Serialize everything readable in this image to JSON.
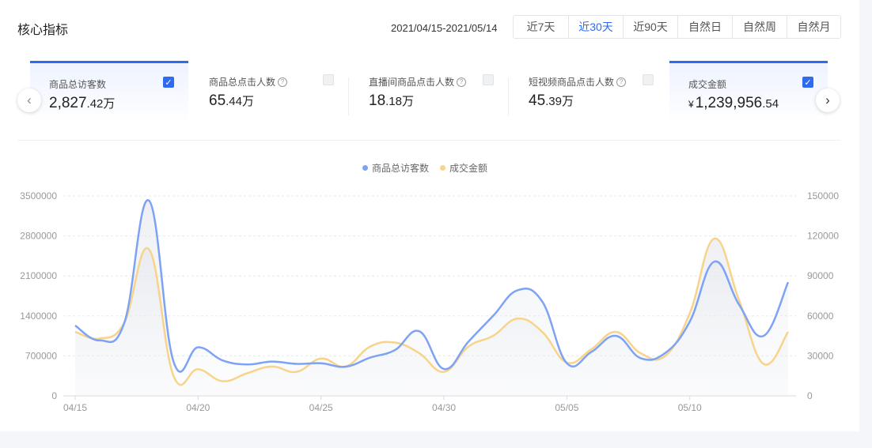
{
  "header": {
    "title": "核心指标",
    "date_range": "2021/04/15-2021/05/14"
  },
  "period_tabs": [
    {
      "label": "近7天",
      "active": false
    },
    {
      "label": "近30天",
      "active": true
    },
    {
      "label": "近90天",
      "active": false
    },
    {
      "label": "自然日",
      "active": false
    },
    {
      "label": "自然周",
      "active": false
    },
    {
      "label": "自然月",
      "active": false
    }
  ],
  "metrics": [
    {
      "label": "商品总访客数",
      "value_main": "2,827",
      "value_small": ".42万",
      "checked": true,
      "help": false
    },
    {
      "label": "商品总点击人数",
      "value_main": "65",
      "value_small": ".44万",
      "checked": false,
      "help": true
    },
    {
      "label": "直播间商品点击人数",
      "value_main": "18",
      "value_small": ".18万",
      "checked": false,
      "help": true
    },
    {
      "label": "短视频商品点击人数",
      "value_main": "45",
      "value_small": ".39万",
      "checked": false,
      "help": true
    },
    {
      "label": "成交金额",
      "currency": "¥",
      "value_main": "1,239,956",
      "value_small": ".54",
      "checked": true,
      "help": false
    }
  ],
  "icons": {
    "prev": "chevron-left-icon",
    "next": "chevron-right-icon",
    "check": "check-icon",
    "help": "question-circle-icon"
  },
  "colors": {
    "accent": "#2e6bf0",
    "series_visitors": "#7ea2f4",
    "series_sales": "#f7d489"
  },
  "chart_data": {
    "type": "line",
    "x": [
      "04/15",
      "04/16",
      "04/17",
      "04/18",
      "04/19",
      "04/20",
      "04/21",
      "04/22",
      "04/23",
      "04/24",
      "04/25",
      "04/26",
      "04/27",
      "04/28",
      "04/29",
      "04/30",
      "05/01",
      "05/02",
      "05/03",
      "05/04",
      "05/05",
      "05/06",
      "05/07",
      "05/08",
      "05/09",
      "05/10",
      "05/11",
      "05/12",
      "05/13",
      "05/14"
    ],
    "x_tick_labels": [
      "04/15",
      "04/20",
      "04/25",
      "04/30",
      "05/05",
      "05/10"
    ],
    "y_left": {
      "min": 0,
      "max": 3500000,
      "ticks": [
        "0",
        "700000",
        "1400000",
        "2100000",
        "2800000",
        "3500000"
      ]
    },
    "y_right": {
      "min": 0,
      "max": 150000,
      "ticks": [
        "0",
        "30000",
        "60000",
        "90000",
        "120000",
        "150000"
      ]
    },
    "grid": "horizontal dashed",
    "legend": "top-center",
    "series": [
      {
        "name": "商品总访客数",
        "axis": "left",
        "values": [
          1230000,
          970000,
          1280000,
          3420000,
          600000,
          850000,
          620000,
          550000,
          600000,
          560000,
          570000,
          510000,
          670000,
          800000,
          1130000,
          470000,
          950000,
          1400000,
          1850000,
          1650000,
          570000,
          770000,
          1050000,
          660000,
          750000,
          1300000,
          2350000,
          1600000,
          1050000,
          1990000
        ]
      },
      {
        "name": "成交金额",
        "axis": "right",
        "values": [
          48000,
          43000,
          55000,
          110000,
          15000,
          20000,
          11000,
          17000,
          22000,
          18000,
          28000,
          22000,
          37000,
          40000,
          32000,
          18000,
          37000,
          45000,
          58000,
          48000,
          25000,
          35000,
          48000,
          32000,
          30000,
          62000,
          118000,
          72000,
          24000,
          48000
        ]
      }
    ]
  }
}
